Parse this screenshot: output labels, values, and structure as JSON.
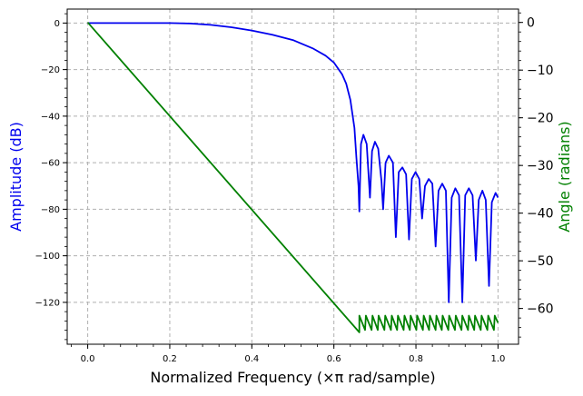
{
  "chart_data": {
    "type": "line",
    "xlabel": "Normalized Frequency (×π rad/sample)",
    "ylabel_left": "Amplitude (dB)",
    "ylabel_right": "Angle (radians)",
    "xlim": [
      -0.05,
      1.05
    ],
    "ylim_left": [
      -138,
      6
    ],
    "ylim_right": [
      -67.5,
      2.8
    ],
    "x_ticks": [
      "0.0",
      "0.2",
      "0.4",
      "0.6",
      "0.8",
      "1.0"
    ],
    "x_tick_values": [
      0,
      0.2,
      0.4,
      0.6,
      0.8,
      1.0
    ],
    "y_left_ticks": [
      "0",
      "−20",
      "−40",
      "−60",
      "−80",
      "−100",
      "−120"
    ],
    "y_left_tick_values": [
      0,
      -20,
      -40,
      -60,
      -80,
      -100,
      -120
    ],
    "y_right_ticks": [
      "0",
      "−10",
      "−20",
      "−30",
      "−40",
      "−50",
      "−60"
    ],
    "y_right_tick_values": [
      0,
      -10,
      -20,
      -30,
      -40,
      -50,
      -60
    ],
    "grid": true,
    "colors": {
      "amplitude": "#0000ee",
      "angle": "#008000"
    },
    "series": [
      {
        "axis": "left",
        "color": "#0000ee",
        "x": [
          0,
          0.05,
          0.1,
          0.15,
          0.2,
          0.25,
          0.3,
          0.35,
          0.4,
          0.45,
          0.5,
          0.55,
          0.58,
          0.6,
          0.62,
          0.63,
          0.64,
          0.65,
          0.655,
          0.66,
          0.662,
          0.666,
          0.672,
          0.68,
          0.688,
          0.693,
          0.7,
          0.708,
          0.716,
          0.72,
          0.726,
          0.734,
          0.744,
          0.751,
          0.758,
          0.767,
          0.776,
          0.783,
          0.79,
          0.799,
          0.808,
          0.815,
          0.822,
          0.831,
          0.84,
          0.848,
          0.855,
          0.864,
          0.873,
          0.88,
          0.887,
          0.896,
          0.905,
          0.913,
          0.92,
          0.929,
          0.938,
          0.946,
          0.953,
          0.962,
          0.97,
          0.978,
          0.985,
          0.994,
          1.0
        ],
        "y": [
          0,
          0,
          0,
          0,
          0,
          -0.2,
          -0.8,
          -1.8,
          -3.2,
          -5,
          -7.3,
          -11,
          -14,
          -17,
          -22,
          -26,
          -33,
          -45,
          -58,
          -70,
          -81,
          -52,
          -48,
          -52,
          -75,
          -55,
          -51,
          -54,
          -68,
          -80,
          -60,
          -57,
          -60,
          -92,
          -64,
          -62,
          -65,
          -93,
          -67,
          -64,
          -67,
          -84,
          -70,
          -67,
          -69,
          -96,
          -72,
          -69,
          -72,
          -120,
          -75,
          -71,
          -74,
          -120,
          -74,
          -71,
          -74,
          -102,
          -76,
          -72,
          -76,
          -113,
          -77,
          -73,
          -75
        ]
      },
      {
        "axis": "right",
        "color": "#008000",
        "x": [
          0,
          0.662,
          0.662,
          0.676,
          0.678,
          0.692,
          0.694,
          0.707,
          0.709,
          0.723,
          0.725,
          0.739,
          0.741,
          0.754,
          0.756,
          0.77,
          0.772,
          0.785,
          0.787,
          0.801,
          0.803,
          0.817,
          0.819,
          0.832,
          0.834,
          0.848,
          0.85,
          0.863,
          0.865,
          0.879,
          0.881,
          0.895,
          0.897,
          0.911,
          0.913,
          0.927,
          0.929,
          0.942,
          0.944,
          0.958,
          0.96,
          0.974,
          0.976,
          0.99,
          0.992,
          1.0
        ],
        "y": [
          0,
          -65,
          -61.5,
          -64.5,
          -61.5,
          -64.5,
          -61.5,
          -64.5,
          -61.5,
          -64.5,
          -61.5,
          -64.5,
          -61.5,
          -64.5,
          -61.5,
          -64.5,
          -61.5,
          -64.5,
          -61.5,
          -64.5,
          -61.5,
          -64.5,
          -61.5,
          -64.5,
          -61.5,
          -64.5,
          -61.5,
          -64.5,
          -61.5,
          -64.5,
          -61.5,
          -64.5,
          -61.5,
          -64.5,
          -61.5,
          -64.5,
          -61.5,
          -64.5,
          -61.5,
          -64.5,
          -61.5,
          -64.5,
          -61.5,
          -64.5,
          -61.5,
          -63.0
        ]
      }
    ]
  }
}
